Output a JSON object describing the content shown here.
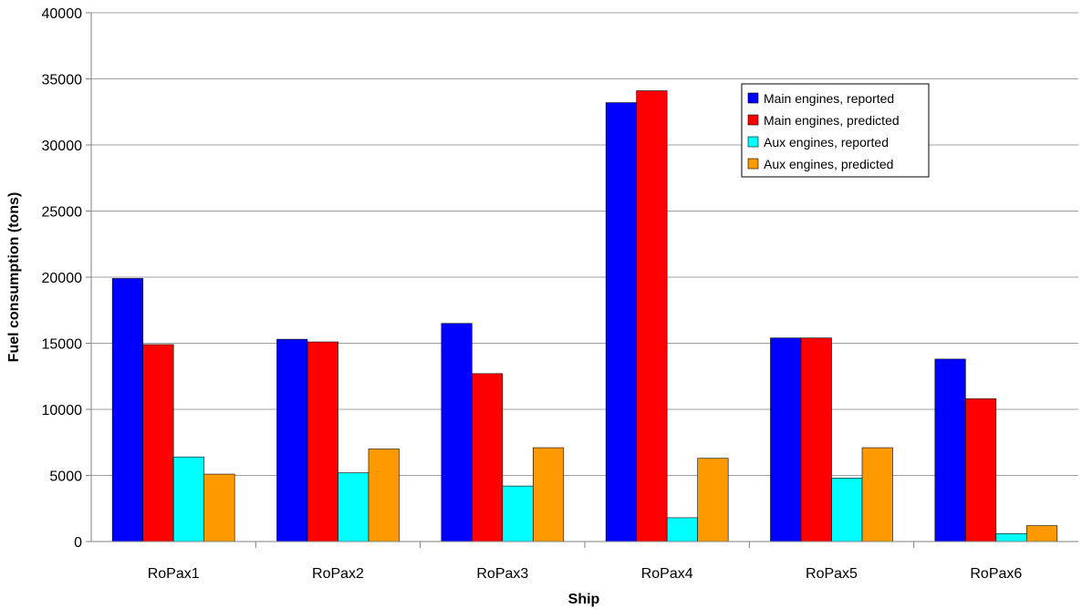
{
  "chart_data": {
    "type": "bar",
    "title": "",
    "xlabel": "Ship",
    "ylabel": "Fuel consumption (tons)",
    "ylim": [
      0,
      40000
    ],
    "yticks": [
      0,
      5000,
      10000,
      15000,
      20000,
      25000,
      30000,
      35000,
      40000
    ],
    "grid": true,
    "legend_position": "top-right",
    "categories": [
      "RoPax1",
      "RoPax2",
      "RoPax3",
      "RoPax4",
      "RoPax5",
      "RoPax6"
    ],
    "series": [
      {
        "name": "Main engines, reported",
        "color": "#0000ff",
        "values": [
          19900,
          15300,
          16500,
          33200,
          15400,
          13800
        ]
      },
      {
        "name": "Main engines, predicted",
        "color": "#ff0000",
        "values": [
          14900,
          15100,
          12700,
          34100,
          15400,
          10800
        ]
      },
      {
        "name": "Aux engines, reported",
        "color": "#00ffff",
        "values": [
          6400,
          5200,
          4200,
          1800,
          4800,
          600
        ]
      },
      {
        "name": "Aux engines, predicted",
        "color": "#ff9900",
        "values": [
          5100,
          7000,
          7100,
          6300,
          7100,
          1200
        ]
      }
    ]
  }
}
